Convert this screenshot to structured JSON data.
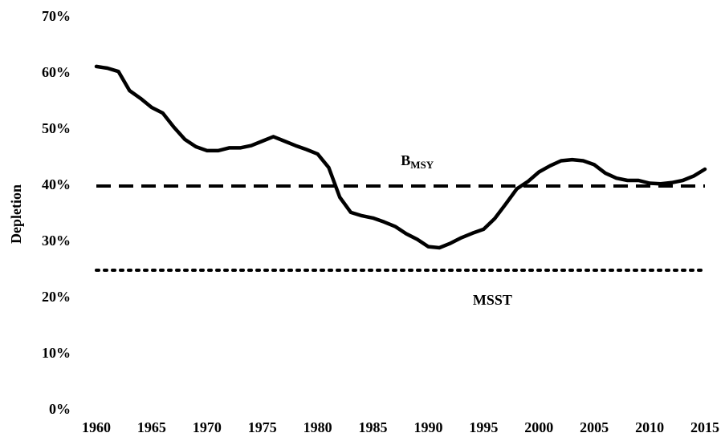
{
  "chart_data": {
    "type": "line",
    "y_label": "Depletion",
    "x": [
      1960,
      1961,
      1962,
      1963,
      1964,
      1965,
      1966,
      1967,
      1968,
      1969,
      1970,
      1971,
      1972,
      1973,
      1974,
      1975,
      1976,
      1977,
      1978,
      1979,
      1980,
      1981,
      1982,
      1983,
      1984,
      1985,
      1986,
      1987,
      1988,
      1989,
      1990,
      1991,
      1992,
      1993,
      1994,
      1995,
      1996,
      1997,
      1998,
      1999,
      2000,
      2001,
      2002,
      2003,
      2004,
      2005,
      2006,
      2007,
      2008,
      2009,
      2010,
      2011,
      2012,
      2013,
      2014,
      2015
    ],
    "values": [
      61.3,
      61.0,
      60.4,
      57.0,
      55.6,
      54.0,
      53.0,
      50.5,
      48.3,
      47.0,
      46.3,
      46.3,
      46.8,
      46.8,
      47.2,
      48.0,
      48.8,
      48.0,
      47.2,
      46.5,
      45.7,
      43.3,
      38.0,
      35.3,
      34.7,
      34.3,
      33.6,
      32.8,
      31.5,
      30.5,
      29.2,
      29.0,
      29.8,
      30.8,
      31.6,
      32.3,
      34.2,
      36.8,
      39.5,
      40.8,
      42.5,
      43.6,
      44.5,
      44.7,
      44.5,
      43.8,
      42.3,
      41.4,
      41.0,
      41.0,
      40.5,
      40.4,
      40.6,
      41.0,
      41.8,
      43.0
    ],
    "color": "#000000",
    "reference_lines": [
      {
        "label": "B",
        "label_sub": "MSY",
        "value": 40,
        "style": "dashed"
      },
      {
        "label": "MSST",
        "value": 25,
        "style": "dotted"
      }
    ],
    "xlim": [
      1960,
      2015
    ],
    "xticks": [
      1960,
      1965,
      1970,
      1975,
      1980,
      1985,
      1990,
      1995,
      2000,
      2005,
      2010,
      2015
    ],
    "ylim": [
      0,
      70
    ],
    "yticks": [
      {
        "value": 0,
        "label": "0%"
      },
      {
        "value": 10,
        "label": "10%"
      },
      {
        "value": 20,
        "label": "20%"
      },
      {
        "value": 30,
        "label": "30%"
      },
      {
        "value": 40,
        "label": "40%"
      },
      {
        "value": 50,
        "label": "50%"
      },
      {
        "value": 60,
        "label": "60%"
      },
      {
        "value": 70,
        "label": "70%"
      }
    ],
    "grid": false
  }
}
